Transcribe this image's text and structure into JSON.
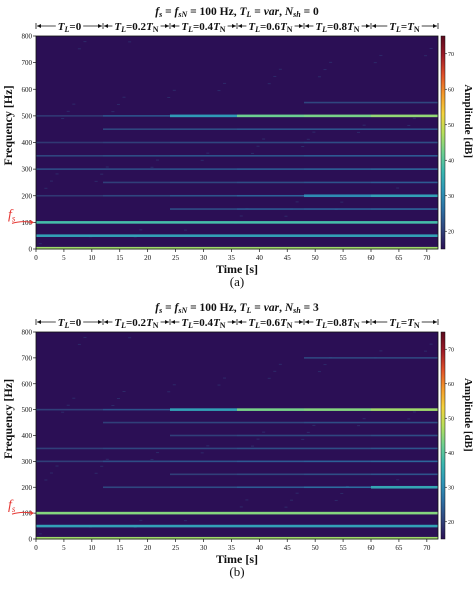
{
  "colors": {
    "background": "#2b0f55",
    "colormap": [
      "#2b0f55",
      "#31447c",
      "#2d6ea3",
      "#2e96b8",
      "#3ab7b0",
      "#6fd08f",
      "#b6df5b",
      "#f4d33e",
      "#f59a2b",
      "#e0502a",
      "#9e1a26",
      "#5a0a1e"
    ],
    "label_fs": "#e53935"
  },
  "chart_data": [
    {
      "type": "heatmap",
      "title": "f_s = f_sN = 100 Hz, T_L = var, N_sh = 0",
      "title_parts": {
        "fs": "f",
        "fs_sub": "s",
        "eq1": " = ",
        "fsn": "f",
        "fsn_sub": "sN",
        "eq2": " = 100 Hz, ",
        "tl": "T",
        "tl_sub": "L",
        "eq3": " = ",
        "var": "var",
        "comma": ", ",
        "nsh": "N",
        "nsh_sub": "sh",
        "eq4": " = 0"
      },
      "xlabel": "Time [s]",
      "ylabel": "Frequency [Hz]",
      "colorbar_label": "Amplitude [dB]",
      "xlim": [
        0,
        72
      ],
      "ylim": [
        0,
        800
      ],
      "clim": [
        15,
        75
      ],
      "x_ticks": [
        0,
        5,
        10,
        15,
        20,
        25,
        30,
        35,
        40,
        45,
        50,
        55,
        60,
        65,
        70
      ],
      "y_ticks": [
        0,
        100,
        200,
        300,
        400,
        500,
        600,
        700,
        800
      ],
      "colorbar_ticks": [
        20,
        30,
        40,
        50,
        60,
        70
      ],
      "panel_label": "(a)",
      "fs_marker": {
        "text": "f",
        "sub": "s",
        "frequency": 100
      },
      "segments": [
        {
          "t_start": 0,
          "t_end": 12,
          "label": "TL=0",
          "parts": [
            "T",
            "L",
            "=0",
            "",
            ""
          ]
        },
        {
          "t_start": 12,
          "t_end": 24,
          "label": "TL=0.2TN",
          "parts": [
            "T",
            "L",
            "=0.2",
            "T",
            "N"
          ]
        },
        {
          "t_start": 24,
          "t_end": 36,
          "label": "TL=0.4TN",
          "parts": [
            "T",
            "L",
            "=0.4",
            "T",
            "N"
          ]
        },
        {
          "t_start": 36,
          "t_end": 48,
          "label": "TL=0.6TN",
          "parts": [
            "T",
            "L",
            "=0.6",
            "T",
            "N"
          ]
        },
        {
          "t_start": 48,
          "t_end": 60,
          "label": "TL=0.8TN",
          "parts": [
            "T",
            "L",
            "=0.8",
            "T",
            "N"
          ]
        },
        {
          "t_start": 60,
          "t_end": 72,
          "label": "TL=TN",
          "parts": [
            "T",
            "L",
            "=",
            "T",
            "N"
          ]
        }
      ],
      "lines": [
        {
          "frequency": 3,
          "segments": [
            [
              0,
              72,
              46
            ]
          ]
        },
        {
          "frequency": 50,
          "segments": [
            [
              0,
              72,
              33
            ]
          ]
        },
        {
          "frequency": 100,
          "segments": [
            [
              0,
              72,
              38
            ]
          ]
        },
        {
          "frequency": 150,
          "segments": [
            [
              24,
              36,
              23
            ],
            [
              36,
              48,
              25
            ],
            [
              48,
              60,
              26
            ],
            [
              60,
              72,
              27
            ]
          ]
        },
        {
          "frequency": 200,
          "segments": [
            [
              0,
              12,
              20
            ],
            [
              12,
              24,
              22
            ],
            [
              24,
              36,
              24
            ],
            [
              36,
              48,
              26
            ],
            [
              48,
              60,
              30
            ],
            [
              60,
              72,
              33
            ]
          ]
        },
        {
          "frequency": 250,
          "segments": [
            [
              12,
              24,
              21
            ],
            [
              24,
              36,
              22
            ],
            [
              36,
              48,
              23
            ],
            [
              48,
              60,
              24
            ],
            [
              60,
              72,
              25
            ]
          ]
        },
        {
          "frequency": 300,
          "segments": [
            [
              0,
              12,
              23
            ],
            [
              12,
              24,
              23
            ],
            [
              24,
              36,
              24
            ],
            [
              36,
              48,
              25
            ],
            [
              48,
              60,
              26
            ],
            [
              60,
              72,
              27
            ]
          ]
        },
        {
          "frequency": 350,
          "segments": [
            [
              0,
              12,
              22
            ],
            [
              12,
              24,
              23
            ],
            [
              24,
              36,
              24
            ],
            [
              36,
              48,
              24
            ],
            [
              48,
              60,
              25
            ],
            [
              60,
              72,
              25
            ]
          ]
        },
        {
          "frequency": 400,
          "segments": [
            [
              0,
              12,
              20
            ],
            [
              12,
              24,
              21
            ],
            [
              24,
              36,
              22
            ],
            [
              36,
              48,
              22
            ],
            [
              48,
              60,
              23
            ],
            [
              60,
              72,
              23
            ]
          ]
        },
        {
          "frequency": 450,
          "segments": [
            [
              12,
              24,
              22
            ],
            [
              24,
              36,
              23
            ],
            [
              36,
              48,
              24
            ],
            [
              48,
              60,
              24
            ],
            [
              60,
              72,
              24
            ]
          ]
        },
        {
          "frequency": 500,
          "segments": [
            [
              0,
              12,
              20
            ],
            [
              12,
              24,
              24
            ],
            [
              24,
              36,
              32
            ],
            [
              36,
              48,
              42
            ],
            [
              48,
              60,
              43
            ],
            [
              60,
              72,
              45
            ]
          ]
        },
        {
          "frequency": 550,
          "segments": [
            [
              48,
              60,
              22
            ],
            [
              60,
              72,
              22
            ]
          ]
        }
      ]
    },
    {
      "type": "heatmap",
      "title": "f_s = f_sN = 100 Hz, T_L = var, N_sh = 3",
      "title_parts": {
        "fs": "f",
        "fs_sub": "s",
        "eq1": " = ",
        "fsn": "f",
        "fsn_sub": "sN",
        "eq2": " = 100 Hz, ",
        "tl": "T",
        "tl_sub": "L",
        "eq3": " = ",
        "var": "var",
        "comma": ", ",
        "nsh": "N",
        "nsh_sub": "sh",
        "eq4": " = 3"
      },
      "xlabel": "Time [s]",
      "ylabel": "Frequency [Hz]",
      "colorbar_label": "Amplitude [dB]",
      "xlim": [
        0,
        72
      ],
      "ylim": [
        0,
        800
      ],
      "clim": [
        15,
        75
      ],
      "x_ticks": [
        0,
        5,
        10,
        15,
        20,
        25,
        30,
        35,
        40,
        45,
        50,
        55,
        60,
        65,
        70
      ],
      "y_ticks": [
        0,
        100,
        200,
        300,
        400,
        500,
        600,
        700,
        800
      ],
      "colorbar_ticks": [
        20,
        30,
        40,
        50,
        60,
        70
      ],
      "panel_label": "(b)",
      "fs_marker": {
        "text": "f",
        "sub": "s",
        "frequency": 100
      },
      "segments": [
        {
          "t_start": 0,
          "t_end": 12,
          "label": "TL=0",
          "parts": [
            "T",
            "L",
            "=0",
            "",
            ""
          ]
        },
        {
          "t_start": 12,
          "t_end": 24,
          "label": "TL=0.2TN",
          "parts": [
            "T",
            "L",
            "=0.2",
            "T",
            "N"
          ]
        },
        {
          "t_start": 24,
          "t_end": 36,
          "label": "TL=0.4TN",
          "parts": [
            "T",
            "L",
            "=0.4",
            "T",
            "N"
          ]
        },
        {
          "t_start": 36,
          "t_end": 48,
          "label": "TL=0.6TN",
          "parts": [
            "T",
            "L",
            "=0.6",
            "T",
            "N"
          ]
        },
        {
          "t_start": 48,
          "t_end": 60,
          "label": "TL=0.8TN",
          "parts": [
            "T",
            "L",
            "=0.8",
            "T",
            "N"
          ]
        },
        {
          "t_start": 60,
          "t_end": 72,
          "label": "TL=TN",
          "parts": [
            "T",
            "L",
            "=",
            "T",
            "N"
          ]
        }
      ],
      "lines": [
        {
          "frequency": 3,
          "segments": [
            [
              0,
              72,
              46
            ]
          ]
        },
        {
          "frequency": 50,
          "segments": [
            [
              0,
              72,
              33
            ]
          ]
        },
        {
          "frequency": 100,
          "segments": [
            [
              0,
              72,
              44
            ]
          ]
        },
        {
          "frequency": 200,
          "segments": [
            [
              12,
              24,
              22
            ],
            [
              24,
              36,
              23
            ],
            [
              36,
              48,
              25
            ],
            [
              48,
              60,
              28
            ],
            [
              60,
              72,
              34
            ]
          ]
        },
        {
          "frequency": 250,
          "segments": [
            [
              24,
              36,
              21
            ],
            [
              36,
              48,
              22
            ],
            [
              48,
              60,
              23
            ],
            [
              60,
              72,
              24
            ]
          ]
        },
        {
          "frequency": 300,
          "segments": [
            [
              0,
              12,
              21
            ],
            [
              12,
              24,
              23
            ],
            [
              24,
              36,
              24
            ],
            [
              36,
              48,
              25
            ],
            [
              48,
              60,
              26
            ],
            [
              60,
              72,
              27
            ]
          ]
        },
        {
          "frequency": 350,
          "segments": [
            [
              0,
              12,
              21
            ],
            [
              12,
              24,
              22
            ],
            [
              24,
              36,
              22
            ],
            [
              36,
              48,
              23
            ],
            [
              48,
              60,
              23
            ],
            [
              60,
              72,
              24
            ]
          ]
        },
        {
          "frequency": 400,
          "segments": [
            [
              24,
              36,
              21
            ],
            [
              36,
              48,
              22
            ],
            [
              48,
              60,
              22
            ],
            [
              60,
              72,
              23
            ]
          ]
        },
        {
          "frequency": 450,
          "segments": [
            [
              12,
              24,
              21
            ],
            [
              24,
              36,
              22
            ],
            [
              36,
              48,
              22
            ],
            [
              48,
              60,
              23
            ],
            [
              60,
              72,
              23
            ]
          ]
        },
        {
          "frequency": 500,
          "segments": [
            [
              0,
              12,
              21
            ],
            [
              12,
              24,
              24
            ],
            [
              24,
              36,
              33
            ],
            [
              36,
              48,
              43
            ],
            [
              48,
              60,
              44
            ],
            [
              60,
              72,
              46
            ]
          ]
        },
        {
          "frequency": 700,
          "segments": [
            [
              48,
              60,
              22
            ],
            [
              60,
              72,
              22
            ]
          ]
        }
      ]
    }
  ]
}
